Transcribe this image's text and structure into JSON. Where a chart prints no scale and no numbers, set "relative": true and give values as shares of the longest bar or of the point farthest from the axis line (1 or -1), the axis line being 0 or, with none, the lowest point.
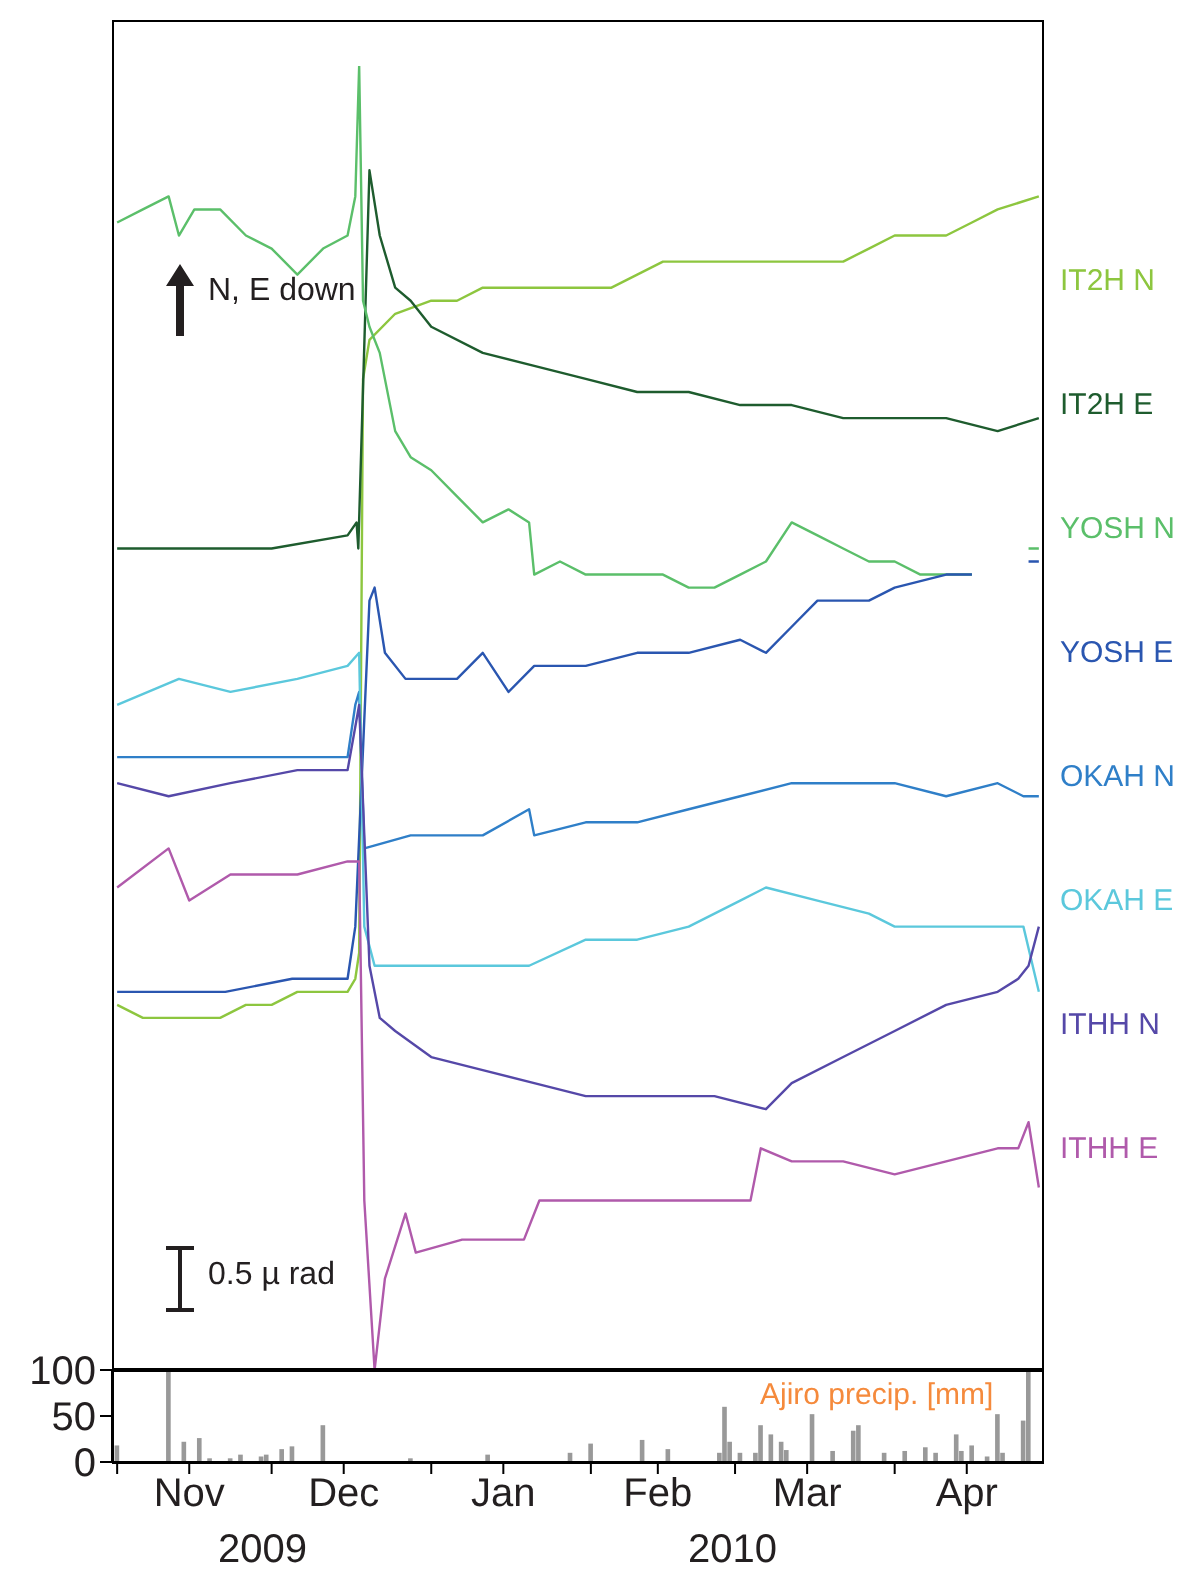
{
  "chart_data": [
    {
      "type": "line",
      "relative": true,
      "xlim": [
        "2009-10-31",
        "2010-04-30"
      ],
      "legend": "right",
      "annotations": [
        "N, E down",
        "0.5 µ rad"
      ],
      "series": [
        {
          "name": "IT2H N",
          "color": "#8dc63f",
          "x": [
            "2009-11-01",
            "2009-11-06",
            "2009-11-11",
            "2009-11-13",
            "2009-11-16",
            "2009-11-21",
            "2009-11-26",
            "2009-12-01",
            "2009-12-06",
            "2009-12-11",
            "2009-12-15T18:00",
            "2009-12-17T06:00",
            "2009-12-18T00:00",
            "2009-12-18T18:00",
            "2009-12-20",
            "2009-12-25",
            "2010-01-01",
            "2010-01-06",
            "2010-01-11",
            "2010-01-16",
            "2010-01-26",
            "2010-01-31",
            "2010-02-05",
            "2010-02-10",
            "2010-02-15",
            "2010-02-25",
            "2010-03-07",
            "2010-03-17",
            "2010-03-22",
            "2010-03-27",
            "2010-04-01",
            "2010-04-11",
            "2010-04-16",
            "2010-04-21",
            "2010-04-29"
          ],
          "values": [
            0.28,
            0.27,
            0.27,
            0.27,
            0.27,
            0.27,
            0.28,
            0.28,
            0.29,
            0.29,
            0.29,
            0.3,
            0.32,
            0.76,
            0.79,
            0.81,
            0.82,
            0.82,
            0.83,
            0.83,
            0.83,
            0.83,
            0.83,
            0.84,
            0.85,
            0.85,
            0.85,
            0.85,
            0.85,
            0.86,
            0.87,
            0.87,
            0.88,
            0.89,
            0.9
          ]
        },
        {
          "name": "IT2H E",
          "color": "#1e5c2e",
          "x": [
            "2009-11-01",
            "2009-11-16",
            "2009-12-01",
            "2009-12-15T18:00",
            "2009-12-17T12:00",
            "2009-12-17T20:00",
            "2009-12-20",
            "2009-12-22",
            "2009-12-25",
            "2009-12-28",
            "2010-01-01",
            "2010-01-11",
            "2010-01-21",
            "2010-01-31",
            "2010-02-10",
            "2010-02-20",
            "2010-03-02",
            "2010-03-12",
            "2010-03-22",
            "2010-04-01",
            "2010-04-11",
            "2010-04-21",
            "2010-04-29"
          ],
          "values": [
            0.63,
            0.63,
            0.63,
            0.64,
            0.65,
            0.63,
            0.92,
            0.87,
            0.83,
            0.82,
            0.8,
            0.78,
            0.77,
            0.76,
            0.75,
            0.75,
            0.74,
            0.74,
            0.73,
            0.73,
            0.73,
            0.72,
            0.73
          ]
        },
        {
          "name": "YOSH N",
          "color": "#5bbf6a",
          "x": [
            "2009-11-01",
            "2009-11-06",
            "2009-11-11",
            "2009-11-13",
            "2009-11-16",
            "2009-11-21",
            "2009-11-26",
            "2009-12-01",
            "2009-12-06",
            "2009-12-11",
            "2009-12-15T18:00",
            "2009-12-17T06:00",
            "2009-12-18T00:00",
            "2009-12-18T18:00",
            "2009-12-20",
            "2009-12-22",
            "2009-12-25",
            "2009-12-28",
            "2010-01-01",
            "2010-01-06",
            "2010-01-11",
            "2010-01-16",
            "2010-01-20",
            "2010-01-21",
            "2010-01-26",
            "2010-01-31",
            "2010-02-05",
            "2010-02-10",
            "2010-02-15",
            "2010-02-20",
            "2010-02-25",
            "2010-03-02",
            "2010-03-07",
            "2010-03-12",
            "2010-03-17",
            "2010-03-22",
            "2010-03-27",
            "2010-04-01",
            "2010-04-06",
            "2010-04-11",
            "2010-04-16",
            "2010-04-21",
            "2010-04-27",
            "2010-04-29"
          ],
          "values": [
            0.88,
            0.89,
            0.9,
            0.87,
            0.89,
            0.89,
            0.87,
            0.86,
            0.84,
            0.86,
            0.87,
            0.9,
            1,
            0.82,
            0.8,
            0.78,
            0.72,
            0.7,
            0.69,
            0.67,
            0.65,
            0.66,
            0.65,
            0.61,
            0.62,
            0.61,
            0.61,
            0.61,
            0.61,
            0.6,
            0.6,
            0.61,
            0.62,
            0.65,
            0.64,
            0.63,
            0.62,
            0.62,
            0.61,
            0.61,
            0.61,
            null,
            0.63,
            0.63
          ]
        },
        {
          "name": "YOSH E",
          "color": "#2a56b0",
          "x": [
            "2009-11-01",
            "2009-11-11",
            "2009-11-13",
            "2009-11-22",
            "2009-12-05",
            "2009-12-11",
            "2009-12-15T18:00",
            "2009-12-17T06:00",
            "2009-12-20",
            "2009-12-21",
            "2009-12-23",
            "2009-12-27",
            "2010-01-06",
            "2010-01-11",
            "2010-01-16",
            "2010-01-21",
            "2010-01-31",
            "2010-02-10",
            "2010-02-20",
            "2010-03-02",
            "2010-03-07",
            "2010-03-12",
            "2010-03-17",
            "2010-03-27",
            "2010-04-01",
            "2010-04-11",
            "2010-04-16",
            "2010-04-21",
            "2010-04-27",
            "2010-04-29"
          ],
          "values": [
            0.29,
            0.29,
            0.29,
            0.29,
            0.3,
            0.3,
            0.3,
            0.34,
            0.59,
            0.6,
            0.55,
            0.53,
            0.53,
            0.55,
            0.52,
            0.54,
            0.54,
            0.55,
            0.55,
            0.56,
            0.55,
            0.57,
            0.59,
            0.59,
            0.6,
            0.61,
            0.61,
            null,
            0.62,
            0.62
          ]
        },
        {
          "name": "OKAH N",
          "color": "#2f7fc8",
          "x": [
            "2009-11-01",
            "2009-11-13",
            "2009-11-23",
            "2009-12-05",
            "2009-12-15T18:00",
            "2009-12-17T06:00",
            "2009-12-18T00:00",
            "2009-12-19",
            "2009-12-28",
            "2010-01-11",
            "2010-01-20",
            "2010-01-21",
            "2010-01-31",
            "2010-02-10",
            "2010-02-20",
            "2010-03-02",
            "2010-03-12",
            "2010-03-22",
            "2010-04-01",
            "2010-04-11",
            "2010-04-21",
            "2010-04-26",
            "2010-04-29"
          ],
          "values": [
            0.47,
            0.47,
            0.47,
            0.47,
            0.47,
            0.51,
            0.52,
            0.4,
            0.41,
            0.41,
            0.43,
            0.41,
            0.42,
            0.42,
            0.43,
            0.44,
            0.45,
            0.45,
            0.45,
            0.44,
            0.45,
            0.44,
            0.44
          ]
        },
        {
          "name": "OKAH E",
          "color": "#5bc8dc",
          "x": [
            "2009-11-01",
            "2009-11-13",
            "2009-11-23",
            "2009-12-06",
            "2009-12-15T18:00",
            "2009-12-18T00:00",
            "2009-12-19",
            "2009-12-21",
            "2009-12-28",
            "2010-01-11",
            "2010-01-20",
            "2010-01-31",
            "2010-02-10",
            "2010-02-20",
            "2010-03-02",
            "2010-03-07",
            "2010-03-17",
            "2010-03-27",
            "2010-04-01",
            "2010-04-16",
            "2010-04-26",
            "2010-04-29"
          ],
          "values": [
            0.51,
            0.53,
            0.52,
            0.53,
            0.54,
            0.55,
            0.34,
            0.31,
            0.31,
            0.31,
            0.31,
            0.33,
            0.33,
            0.34,
            0.36,
            0.37,
            0.36,
            0.35,
            0.34,
            0.34,
            0.34,
            0.29
          ]
        },
        {
          "name": "ITHH N",
          "color": "#5548a8",
          "x": [
            "2009-11-01",
            "2009-11-11",
            "2009-11-23",
            "2009-12-06",
            "2009-12-15T18:00",
            "2009-12-18T00:00",
            "2009-12-20",
            "2009-12-22",
            "2009-12-25",
            "2010-01-01",
            "2010-01-11",
            "2010-01-21",
            "2010-01-31",
            "2010-02-15",
            "2010-02-25",
            "2010-03-07",
            "2010-03-12",
            "2010-03-22",
            "2010-04-01",
            "2010-04-11",
            "2010-04-21",
            "2010-04-25",
            "2010-04-27",
            "2010-04-29"
          ],
          "values": [
            0.45,
            0.44,
            0.45,
            0.46,
            0.46,
            0.51,
            0.31,
            0.27,
            0.26,
            0.24,
            0.23,
            0.22,
            0.21,
            0.21,
            0.21,
            0.2,
            0.22,
            0.24,
            0.26,
            0.28,
            0.29,
            0.3,
            0.31,
            0.34
          ]
        },
        {
          "name": "ITHH E",
          "color": "#b05aab",
          "x": [
            "2009-11-01",
            "2009-11-11",
            "2009-11-15",
            "2009-11-23",
            "2009-12-06",
            "2009-12-15T18:00",
            "2009-12-18T00:00",
            "2009-12-19",
            "2009-12-21",
            "2009-12-23",
            "2009-12-27",
            "2009-12-29",
            "2010-01-07",
            "2010-01-19",
            "2010-01-22",
            "2010-01-31",
            "2010-02-15",
            "2010-02-28",
            "2010-03-04",
            "2010-03-06",
            "2010-03-12",
            "2010-03-22",
            "2010-04-01",
            "2010-04-11",
            "2010-04-21",
            "2010-04-25",
            "2010-04-27",
            "2010-04-29"
          ],
          "values": [
            0.37,
            0.4,
            0.36,
            0.38,
            0.38,
            0.39,
            0.39,
            0.13,
            0,
            0.07,
            0.12,
            0.09,
            0.1,
            0.1,
            0.13,
            0.13,
            0.13,
            0.13,
            0.13,
            0.17,
            0.16,
            0.16,
            0.15,
            0.16,
            0.17,
            0.17,
            0.19,
            0.14
          ]
        }
      ]
    },
    {
      "type": "bar",
      "xlim": [
        "2009-10-31",
        "2010-04-30"
      ],
      "ylim": [
        0,
        100
      ],
      "yticks": [
        0,
        50,
        100
      ],
      "color": "#999999",
      "annotations": [
        "Ajiro precip. [mm]",
        "2009",
        "2010"
      ],
      "xticks": [
        {
          "value": "2009-11-01",
          "label": null
        },
        {
          "value": "2009-11-15",
          "label": "Nov"
        },
        {
          "value": "2009-12-01",
          "label": null
        },
        {
          "value": "2009-12-15",
          "label": "Dec"
        },
        {
          "value": "2010-01-01",
          "label": null
        },
        {
          "value": "2010-01-15",
          "label": "Jan"
        },
        {
          "value": "2010-02-01",
          "label": null
        },
        {
          "value": "2010-02-14",
          "label": "Feb"
        },
        {
          "value": "2010-03-01",
          "label": null
        },
        {
          "value": "2010-03-15",
          "label": "Mar"
        },
        {
          "value": "2010-04-01",
          "label": null
        },
        {
          "value": "2010-04-15",
          "label": "Apr"
        }
      ],
      "x": [
        "2009-11-01",
        "2009-11-11",
        "2009-11-14",
        "2009-11-17",
        "2009-11-19",
        "2009-11-23",
        "2009-11-25",
        "2009-11-29",
        "2009-11-30",
        "2009-12-03",
        "2009-12-05",
        "2009-12-11",
        "2009-12-28",
        "2010-01-12",
        "2010-01-28",
        "2010-02-01",
        "2010-02-11",
        "2010-02-16",
        "2010-02-26",
        "2010-02-27",
        "2010-02-28",
        "2010-03-02",
        "2010-03-05",
        "2010-03-06",
        "2010-03-08",
        "2010-03-10",
        "2010-03-11",
        "2010-03-16",
        "2010-03-20",
        "2010-03-24",
        "2010-03-25",
        "2010-03-30",
        "2010-04-03",
        "2010-04-07",
        "2010-04-09",
        "2010-04-13",
        "2010-04-14",
        "2010-04-16",
        "2010-04-19",
        "2010-04-21",
        "2010-04-22",
        "2010-04-26",
        "2010-04-27"
      ],
      "values": [
        18,
        100,
        22,
        26,
        4,
        4,
        8,
        6,
        8,
        14,
        17,
        40,
        4,
        8,
        10,
        20,
        24,
        14,
        10,
        60,
        22,
        10,
        10,
        40,
        30,
        22,
        13,
        52,
        12,
        34,
        40,
        10,
        12,
        16,
        10,
        30,
        12,
        18,
        6,
        52,
        10,
        45,
        100
      ]
    }
  ]
}
